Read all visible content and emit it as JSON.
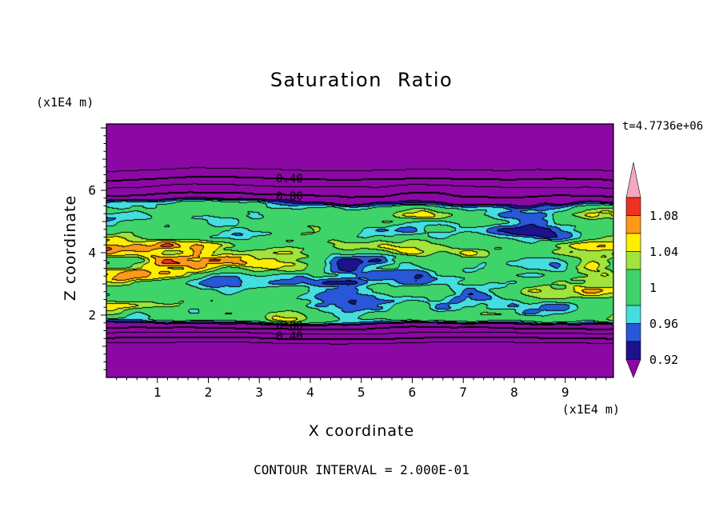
{
  "title": "Saturation Ratio",
  "timestamp": "t=4.7736e+06",
  "contour_note": "CONTOUR INTERVAL = 2.000E-01",
  "axes": {
    "x": {
      "label": "X coordinate",
      "unit": "(x1E4 m)",
      "major_ticks": [
        "1",
        "2",
        "3",
        "4",
        "5",
        "6",
        "7",
        "8",
        "9"
      ]
    },
    "z": {
      "label": "Z coordinate",
      "unit": "(x1E4 m)",
      "major_ticks": [
        "2",
        "4",
        "6"
      ]
    }
  },
  "contour_labels": [
    "0.40",
    "0.80",
    "0.80",
    "0.40"
  ],
  "colorbar": {
    "labels": [
      "1.08",
      "1.04",
      "1",
      "0.96",
      "0.92"
    ],
    "top_arrow_color": "#F4A8C0",
    "bottom_arrow_color": "#8C08A4",
    "segments": [
      {
        "color": "#EE3123",
        "value_range": [
          1.08,
          1.1
        ]
      },
      {
        "color": "#FF9818",
        "value_range": [
          1.06,
          1.08
        ]
      },
      {
        "color": "#FFEE00",
        "value_range": [
          1.04,
          1.06
        ]
      },
      {
        "color": "#A0E43C",
        "value_range": [
          1.02,
          1.04
        ]
      },
      {
        "color": "#3FD46A",
        "value_range": [
          0.98,
          1.02
        ]
      },
      {
        "color": "#45DEE0",
        "value_range": [
          0.96,
          0.98
        ]
      },
      {
        "color": "#2857D8",
        "value_range": [
          0.94,
          0.96
        ]
      },
      {
        "color": "#1C138C",
        "value_range": [
          0.92,
          0.94
        ]
      }
    ]
  },
  "chart_data": {
    "type": "heatmap",
    "subtype": "filled_contour",
    "title": "Saturation Ratio",
    "xlabel": "X coordinate (x1E4 m)",
    "ylabel": "Z coordinate (x1E4 m)",
    "time_annotation": "t=4.7736e+06",
    "x_range": [
      0,
      9.95
    ],
    "z_range": [
      0,
      8.1
    ],
    "x_tick_values": [
      1,
      2,
      3,
      4,
      5,
      6,
      7,
      8,
      9
    ],
    "z_tick_values": [
      2,
      4,
      6
    ],
    "contour_interval": 0.2,
    "line_contour_levels": [
      0.2,
      0.4,
      0.6,
      0.8
    ],
    "colorbar_tick_values": [
      1.08,
      1.04,
      1.0,
      0.96,
      0.92
    ],
    "fill_levels_and_colors": [
      {
        "range": "<0.92",
        "color": "#8C08A4"
      },
      {
        "range": "0.92-0.94",
        "color": "#1C138C"
      },
      {
        "range": "0.94-0.96",
        "color": "#2857D8"
      },
      {
        "range": "0.96-0.98",
        "color": "#45DEE0"
      },
      {
        "range": "0.98-1.02",
        "color": "#3FD46A"
      },
      {
        "range": "1.02-1.04",
        "color": "#A0E43C"
      },
      {
        "range": "1.04-1.06",
        "color": "#FFEE00"
      },
      {
        "range": "1.06-1.08",
        "color": "#FF9818"
      },
      {
        "range": "1.08-1.10",
        "color": "#EE3123"
      },
      {
        "range": ">1.10",
        "color": "#F4A8C0"
      }
    ],
    "field_description": "Saturation ratio is near 1 inside a turbulent horizontal band between z of about 1.8 and 5.4 (x1E4 m), with green dominant and patches of cyan, blue, dark blue, yellow-green, yellow, orange and red; outside the band the value is below 0.92 (purple) with thin horizontal line contours at 0.2, 0.4, 0.6 and 0.8 hugging the band edges (0.40 and 0.80 lines are labeled above and below the band)."
  }
}
